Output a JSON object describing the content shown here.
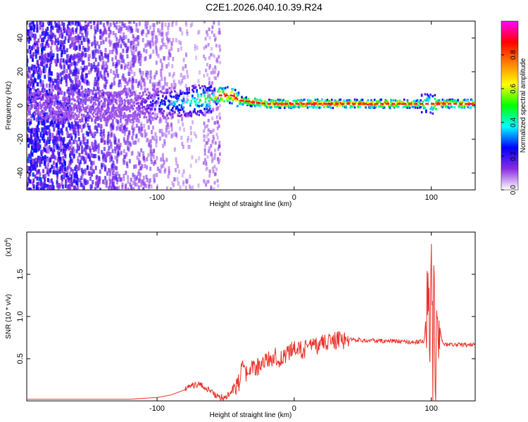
{
  "title": "C2E1.2026.040.10.39.R24",
  "chart_data": [
    {
      "type": "heatmap",
      "xlabel": "Height of straight line (km)",
      "ylabel": "Frequency (Hz)",
      "xlim": [
        -195,
        132
      ],
      "ylim": [
        -50,
        50
      ],
      "xticks": [
        -100,
        0,
        100
      ],
      "yticks": [
        -40,
        -20,
        0,
        20,
        40
      ],
      "colorbar": {
        "label": "Normalized spectral amplitude",
        "range": [
          0,
          1
        ],
        "ticks": [
          "0.0",
          "0.2",
          "0.4",
          "0.6",
          "0.8"
        ],
        "tick_values": [
          0,
          0.2,
          0.4,
          0.6,
          0.8
        ],
        "colors": [
          "#ffffff",
          "#8a2be2",
          "#0000ff",
          "#00ffff",
          "#00ff00",
          "#ffff00",
          "#ff8000",
          "#ff0000",
          "#ff00ff"
        ]
      },
      "ridge": {
        "x": [
          -195,
          -120,
          -100,
          -80,
          -60,
          -55,
          -45,
          -40,
          -30,
          -20,
          -10,
          0,
          20,
          40,
          60,
          80,
          95,
          100,
          105,
          130
        ],
        "y": [
          0,
          0,
          1,
          2,
          4,
          6,
          6,
          3,
          2,
          1,
          1,
          1,
          1,
          1,
          1,
          1,
          1,
          1,
          1,
          1
        ],
        "amplitude": [
          0.05,
          0.1,
          0.25,
          0.4,
          0.55,
          0.85,
          0.9,
          0.8,
          0.85,
          0.85,
          0.9,
          0.92,
          0.92,
          0.9,
          0.9,
          0.9,
          0.6,
          0.5,
          0.9,
          0.9
        ]
      }
    },
    {
      "type": "line",
      "xlabel": "Height of straight line (km)",
      "ylabel": "SNR (10 * v/v)",
      "scale_label": "(x10",
      "scale_exp": "4",
      "scale_close": ")",
      "xlim": [
        -195,
        132
      ],
      "ylim": [
        0,
        2.0
      ],
      "xticks": [
        -100,
        0,
        100
      ],
      "yticks": [
        "0.5",
        "1.0",
        "1.5"
      ],
      "ytick_values": [
        0.5,
        1.0,
        1.5
      ],
      "color": "#e8322a",
      "series": {
        "name": "SNR",
        "x": [
          -195,
          -160,
          -120,
          -100,
          -90,
          -80,
          -75,
          -70,
          -65,
          -60,
          -55,
          -50,
          -45,
          -40,
          -38,
          -35,
          -30,
          -25,
          -20,
          -15,
          -10,
          -5,
          0,
          5,
          10,
          15,
          20,
          25,
          30,
          35,
          40,
          50,
          60,
          70,
          80,
          90,
          95,
          97,
          99,
          100,
          101,
          102,
          103,
          104,
          105,
          106,
          108,
          110,
          115,
          120,
          125,
          132
        ],
        "y": [
          0.02,
          0.02,
          0.02,
          0.04,
          0.07,
          0.13,
          0.18,
          0.2,
          0.16,
          0.1,
          0.04,
          0.05,
          0.12,
          0.22,
          0.38,
          0.3,
          0.38,
          0.42,
          0.48,
          0.53,
          0.5,
          0.57,
          0.6,
          0.6,
          0.62,
          0.65,
          0.68,
          0.7,
          0.72,
          0.71,
          0.73,
          0.72,
          0.71,
          0.71,
          0.7,
          0.7,
          0.71,
          1.3,
          1.0,
          1.9,
          0.3,
          1.2,
          0.1,
          1.1,
          0.2,
          0.9,
          0.7,
          0.67,
          0.67,
          0.67,
          0.66,
          0.67
        ]
      }
    }
  ]
}
